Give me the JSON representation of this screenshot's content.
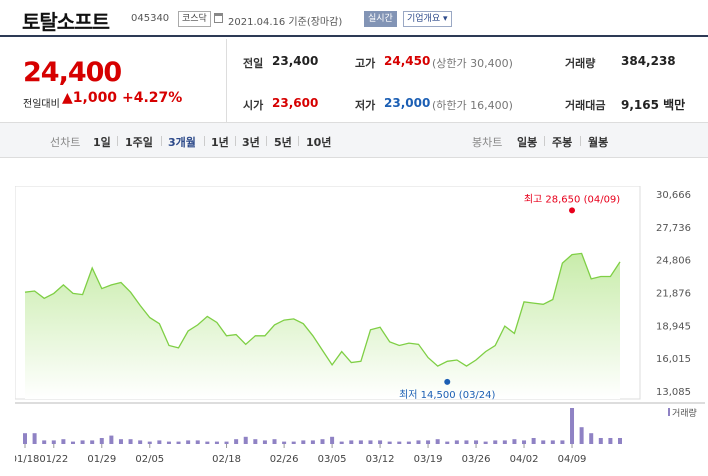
{
  "stock": {
    "name": "토탈소프트",
    "code": "045340",
    "market": "코스닥",
    "date_text": "2021.04.16 기준(장마감)",
    "realtime": "실시간",
    "company_info": "기업개요 ▾"
  },
  "price": {
    "current": "24,400",
    "compare_label": "전일대비",
    "compare_value": "▲1,000",
    "rate": "+4.27%"
  },
  "quote": {
    "prev_label": "전일",
    "prev_value": "23,400",
    "high_label": "고가",
    "high_value": "24,450",
    "upper_limit": "(상한가 30,400)",
    "volume_label": "거래량",
    "volume_value": "384,238",
    "open_label": "시가",
    "open_value": "23,600",
    "low_label": "저가",
    "low_value": "23,000",
    "lower_limit": "(하한가 16,400)",
    "amount_label": "거래대금",
    "amount_value": "9,165 백만"
  },
  "period": {
    "line_label": "선차트",
    "items": [
      "1일",
      "1주일",
      "3개월",
      "1년",
      "3년",
      "5년",
      "10년"
    ],
    "selected": "3개월",
    "candle_label": "봉차트",
    "candle_items": [
      "일봉",
      "주봉",
      "월봉"
    ]
  },
  "colors": {
    "line": "#7fcf45",
    "fill_top": "#c8ecaa",
    "high": "#e8001c",
    "low": "#1c5fb4",
    "volume": "#8f82c4"
  },
  "chart_data": {
    "type": "area",
    "x_ticks": [
      "01/18",
      "01/22",
      "01/29",
      "02/05",
      "02/18",
      "02/26",
      "03/05",
      "03/12",
      "03/19",
      "03/26",
      "04/02",
      "04/09"
    ],
    "y_ticks": [
      "30,666",
      "27,736",
      "24,806",
      "21,876",
      "18,945",
      "16,015",
      "13,085"
    ],
    "ylim": [
      13085,
      30666
    ],
    "prices": [
      21900,
      22000,
      21400,
      21800,
      22500,
      21800,
      21700,
      23900,
      22200,
      22500,
      22700,
      21900,
      20800,
      19800,
      19300,
      17500,
      17300,
      18700,
      19200,
      19900,
      19400,
      18300,
      18400,
      17600,
      18300,
      18300,
      19200,
      19600,
      19700,
      19300,
      18300,
      17100,
      15900,
      17000,
      16100,
      16200,
      18800,
      19000,
      17800,
      17500,
      17700,
      17600,
      16500,
      15800,
      16200,
      16300,
      15800,
      16300,
      17000,
      17500,
      19100,
      18500,
      21100,
      21000,
      20900,
      21300,
      24300,
      25000,
      25100,
      23000,
      23200,
      23200,
      24400
    ],
    "volumes": [
      9,
      9,
      3,
      3,
      4,
      2,
      3,
      3,
      5,
      7,
      4,
      4,
      3,
      2,
      3,
      2,
      2,
      3,
      3,
      2,
      2,
      2,
      4,
      6,
      4,
      3,
      4,
      2,
      2,
      3,
      3,
      4,
      6,
      2,
      3,
      3,
      3,
      3,
      2,
      2,
      2,
      3,
      3,
      4,
      2,
      3,
      3,
      3,
      2,
      3,
      3,
      4,
      3,
      5,
      3,
      3,
      3,
      30,
      14,
      9,
      5,
      5,
      5
    ],
    "high_label": "최고 28,650 (04/09)",
    "low_label": "최저 14,500 (03/24)",
    "volume_legend": "거래량"
  }
}
